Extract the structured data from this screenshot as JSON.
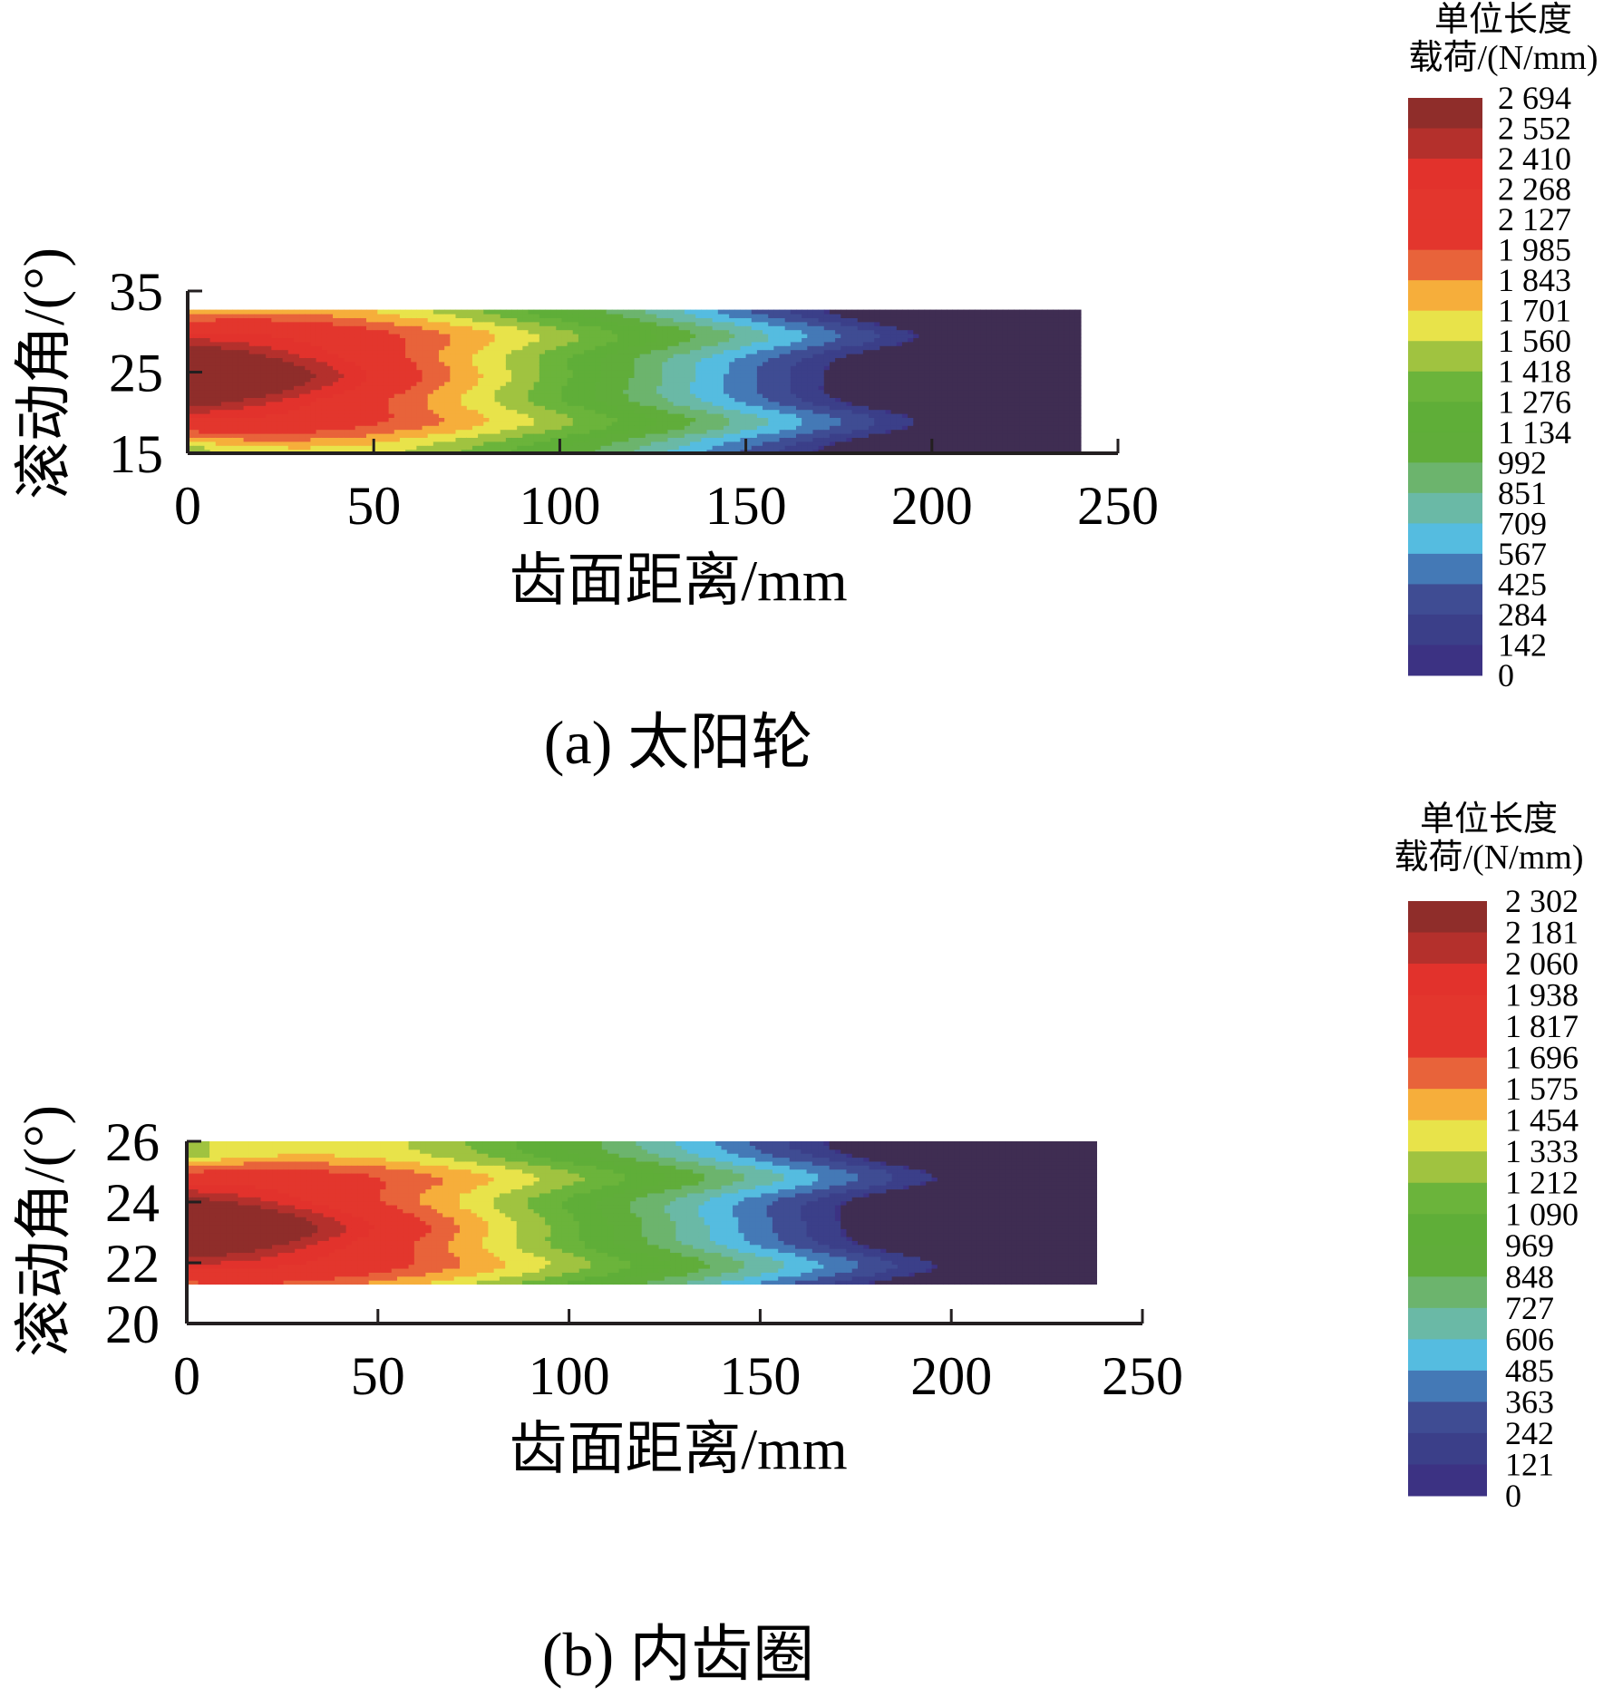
{
  "chart_data": [
    {
      "type": "heatmap",
      "caption": "(a)  太阳轮",
      "xlabel": "齿面距离/mm",
      "ylabel": "滚动角/(°)",
      "xlim": [
        0,
        250
      ],
      "ylim": [
        15,
        35
      ],
      "xticks": [
        "0",
        "50",
        "100",
        "150",
        "200",
        "250"
      ],
      "yticks": [
        "35",
        "25",
        "15"
      ],
      "data_extent": {
        "x": [
          0,
          240
        ],
        "y": [
          15,
          32.7
        ]
      },
      "peak": {
        "x": 0,
        "y": 24.5,
        "value": 2694
      },
      "colorbar": {
        "title_line1": "单位长度",
        "title_line2": "载荷/(N/mm)",
        "labels": [
          "2 694",
          "2 552",
          "2 410",
          "2 268",
          "2 127",
          "1 985",
          "1 843",
          "1 701",
          "1 560",
          "1 418",
          "1 276",
          "1 134",
          "992",
          "851",
          "709",
          "567",
          "425",
          "284",
          "142",
          "0"
        ],
        "levels": [
          2694,
          2552,
          2410,
          2268,
          2127,
          1985,
          1843,
          1701,
          1560,
          1418,
          1276,
          1134,
          992,
          851,
          709,
          567,
          425,
          284,
          142,
          0
        ]
      }
    },
    {
      "type": "heatmap",
      "caption": "(b)  内齿圈",
      "xlabel": "齿面距离/mm",
      "ylabel": "滚动角/(°)",
      "xlim": [
        0,
        250
      ],
      "ylim": [
        20,
        26
      ],
      "xticks": [
        "0",
        "50",
        "100",
        "150",
        "200",
        "250"
      ],
      "yticks": [
        "26",
        "24",
        "22",
        "20"
      ],
      "data_extent": {
        "x": [
          0,
          238
        ],
        "y": [
          21.3,
          26
        ]
      },
      "peak": {
        "x": 0,
        "y": 23.2,
        "value": 2302
      },
      "colorbar": {
        "title_line1": "单位长度",
        "title_line2": "载荷/(N/mm)",
        "labels": [
          "2 302",
          "2 181",
          "2 060",
          "1 938",
          "1 817",
          "1 696",
          "1 575",
          "1 454",
          "1 333",
          "1 212",
          "1 090",
          "969",
          "848",
          "727",
          "606",
          "485",
          "363",
          "242",
          "121",
          "0"
        ],
        "levels": [
          2302,
          2181,
          2060,
          1938,
          1817,
          1696,
          1575,
          1454,
          1333,
          1212,
          1090,
          969,
          848,
          727,
          606,
          485,
          363,
          242,
          121,
          0
        ]
      }
    }
  ],
  "colors": {
    "bands_high_to_low": [
      "#8f2d2a",
      "#b4302c",
      "#e2322c",
      "#e3362d",
      "#e3362d",
      "#e8633a",
      "#f6ae3b",
      "#e8e34a",
      "#a0c340",
      "#6bb43b",
      "#5fae38",
      "#60ad3a",
      "#6cb46d",
      "#6ab9a6",
      "#55bce0",
      "#4479b6",
      "#3f4c93",
      "#3b3f89",
      "#3c3283"
    ],
    "zero_region": "#3f2d52",
    "axis": "#231f20"
  }
}
